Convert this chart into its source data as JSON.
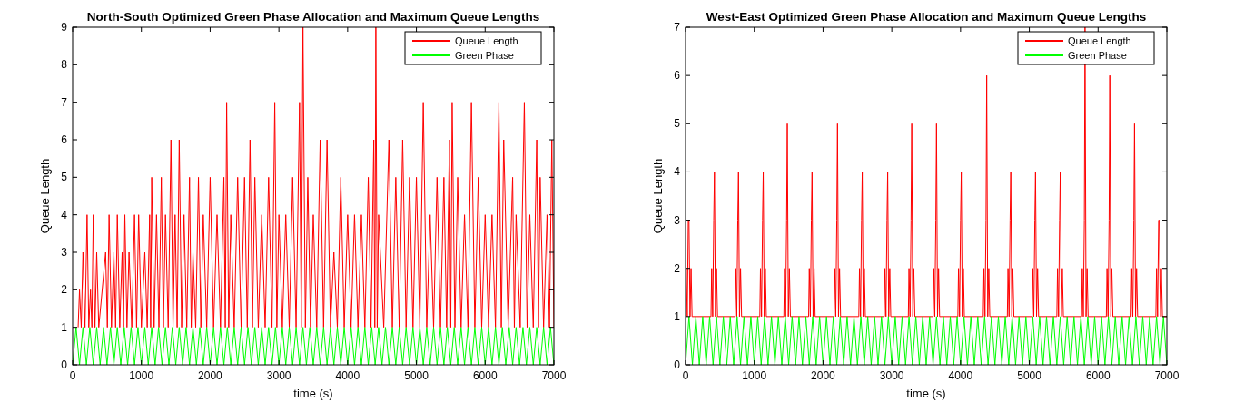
{
  "chart_data": [
    {
      "type": "line",
      "title": "North-South Optimized Green Phase Allocation and Maximum Queue Lengths",
      "xlabel": "time (s)",
      "ylabel": "Queue Length",
      "xlim": [
        0,
        7000
      ],
      "xticks": [
        0,
        1000,
        2000,
        3000,
        4000,
        5000,
        6000,
        7000
      ],
      "ylim": [
        0,
        9
      ],
      "yticks": [
        0,
        1,
        2,
        3,
        4,
        5,
        6,
        7,
        8,
        9
      ],
      "legend": "top right",
      "series": [
        {
          "name": "Queue Length",
          "color": "#ff0000",
          "x": [
            80,
            100,
            125,
            150,
            180,
            210,
            235,
            260,
            280,
            300,
            325,
            350,
            380,
            480,
            505,
            530,
            565,
            600,
            625,
            650,
            685,
            720,
            740,
            760,
            790,
            820,
            860,
            900,
            930,
            960,
            1000,
            1050,
            1085,
            1120,
            1135,
            1150,
            1185,
            1220,
            1255,
            1290,
            1320,
            1350,
            1390,
            1430,
            1460,
            1490,
            1520,
            1550,
            1585,
            1620,
            1660,
            1700,
            1725,
            1750,
            1790,
            1830,
            1865,
            1900,
            1950,
            2000,
            2050,
            2100,
            2150,
            2200,
            2220,
            2240,
            2270,
            2300,
            2350,
            2400,
            2450,
            2500,
            2540,
            2580,
            2615,
            2650,
            2700,
            2750,
            2800,
            2850,
            2900,
            2940,
            2970,
            3000,
            3050,
            3100,
            3150,
            3200,
            3250,
            3300,
            3325,
            3350,
            3385,
            3420,
            3460,
            3500,
            3550,
            3600,
            3650,
            3700,
            3750,
            3800,
            3850,
            3900,
            3950,
            4000,
            4050,
            4100,
            4150,
            4200,
            4250,
            4300,
            4340,
            4380,
            4395,
            4410,
            4430,
            4450,
            4525,
            4600,
            4650,
            4700,
            4750,
            4800,
            4850,
            4900,
            4950,
            5000,
            5050,
            5100,
            5150,
            5200,
            5250,
            5300,
            5350,
            5400,
            5440,
            5480,
            5500,
            5520,
            5560,
            5600,
            5650,
            5700,
            5750,
            5800,
            5850,
            5900,
            5950,
            6000,
            6050,
            6100,
            6150,
            6200,
            6235,
            6270,
            6335,
            6400,
            6425,
            6450,
            6510,
            6570,
            6610,
            6650,
            6700,
            6750,
            6775,
            6800,
            6850,
            6900,
            6935,
            6970,
            7000
          ],
          "values": [
            1,
            2,
            1,
            3,
            1,
            4,
            1,
            2,
            1,
            4,
            1,
            3,
            1,
            3,
            1,
            4,
            1,
            3,
            1,
            4,
            1,
            3,
            1,
            4,
            1,
            3,
            1,
            4,
            1,
            4,
            1,
            3,
            1,
            4,
            1,
            5,
            1,
            4,
            1,
            5,
            1,
            4,
            1,
            6,
            1,
            4,
            1,
            6,
            1,
            4,
            1,
            5,
            1,
            3,
            1,
            5,
            1,
            4,
            1,
            5,
            1,
            4,
            1,
            5,
            1,
            7,
            1,
            4,
            1,
            5,
            1,
            5,
            1,
            6,
            1,
            5,
            1,
            4,
            1,
            5,
            1,
            7,
            1,
            4,
            1,
            4,
            1,
            5,
            1,
            7,
            1,
            9,
            1,
            5,
            1,
            4,
            1,
            6,
            1,
            6,
            1,
            3,
            1,
            5,
            1,
            4,
            1,
            4,
            1,
            4,
            1,
            5,
            1,
            6,
            1,
            9,
            1,
            4,
            1,
            6,
            1,
            5,
            1,
            6,
            1,
            5,
            1,
            5,
            1,
            7,
            1,
            4,
            1,
            5,
            1,
            5,
            1,
            6,
            1,
            7,
            1,
            5,
            1,
            4,
            1,
            7,
            1,
            5,
            1,
            4,
            1,
            4,
            1,
            7,
            1,
            6,
            1,
            5,
            1,
            4,
            1,
            7,
            1,
            4,
            1,
            6,
            1,
            5,
            1,
            4,
            1,
            6,
            1
          ]
        },
        {
          "name": "Green Phase",
          "color": "#00ff00",
          "x": [
            0,
            50,
            100,
            150,
            200,
            250,
            300,
            350,
            400,
            450,
            500,
            550,
            600,
            650,
            700,
            750,
            800,
            850,
            900,
            950,
            1000,
            1050,
            1100,
            1150,
            1200,
            1250,
            1300,
            1350,
            1400,
            1450,
            1500,
            1550,
            1600,
            1650,
            1700,
            1750,
            1800,
            1850,
            1900,
            1950,
            2000,
            2050,
            2100,
            2150,
            2200,
            2250,
            2300,
            2350,
            2400,
            2450,
            2500,
            2550,
            2600,
            2650,
            2700,
            2750,
            2800,
            2850,
            2900,
            2950,
            3000,
            3050,
            3100,
            3150,
            3200,
            3250,
            3300,
            3350,
            3400,
            3450,
            3500,
            3550,
            3600,
            3650,
            3700,
            3750,
            3800,
            3850,
            3900,
            3950,
            4000,
            4050,
            4100,
            4150,
            4200,
            4250,
            4300,
            4350,
            4400,
            4450,
            4500,
            4550,
            4600,
            4650,
            4700,
            4750,
            4800,
            4850,
            4900,
            4950,
            5000,
            5050,
            5100,
            5150,
            5200,
            5250,
            5300,
            5350,
            5400,
            5450,
            5500,
            5550,
            5600,
            5650,
            5700,
            5750,
            5800,
            5850,
            5900,
            5950,
            6000,
            6050,
            6100,
            6150,
            6200,
            6250,
            6300,
            6350,
            6400,
            6450,
            6500,
            6550,
            6600,
            6650,
            6700,
            6750,
            6800,
            6850,
            6900,
            6950,
            7000
          ],
          "values": [
            0,
            1,
            0,
            1,
            0,
            1,
            0,
            1,
            0,
            1,
            0,
            1,
            0,
            1,
            0,
            1,
            0,
            1,
            0,
            1,
            0,
            1,
            0,
            1,
            0,
            1,
            0,
            1,
            0,
            1,
            0,
            1,
            0,
            1,
            0,
            1,
            0,
            1,
            0,
            1,
            0,
            1,
            0,
            1,
            0,
            1,
            0,
            1,
            0,
            1,
            0,
            1,
            0,
            1,
            0,
            1,
            0,
            1,
            0,
            1,
            0,
            1,
            0,
            1,
            0,
            1,
            0,
            1,
            0,
            1,
            0,
            1,
            0,
            1,
            0,
            1,
            0,
            1,
            0,
            1,
            0,
            1,
            0,
            1,
            0,
            1,
            0,
            1,
            0,
            1,
            0,
            1,
            0,
            1,
            0,
            1,
            0,
            1,
            0,
            1,
            0,
            1,
            0,
            1,
            0,
            1,
            0,
            1,
            0,
            1,
            0,
            1,
            0,
            1,
            0,
            1,
            0,
            1,
            0,
            1,
            0,
            1,
            0,
            1,
            0,
            1,
            0,
            1,
            0,
            1,
            0,
            1,
            0,
            1,
            0,
            1,
            0,
            1,
            0,
            1,
            0
          ]
        }
      ]
    },
    {
      "type": "line",
      "title": "West-East Optimized Green Phase Allocation and Maximum Queue Lengths",
      "xlabel": "time (s)",
      "ylabel": "Queue Length",
      "xlim": [
        0,
        7000
      ],
      "xticks": [
        0,
        1000,
        2000,
        3000,
        4000,
        5000,
        6000,
        7000
      ],
      "ylim": [
        0,
        7
      ],
      "yticks": [
        0,
        1,
        2,
        3,
        4,
        5,
        6,
        7
      ],
      "legend": "top right",
      "series": [
        {
          "name": "Queue Length",
          "color": "#ff0000",
          "x": [
            0,
            10,
            25,
            40,
            50,
            65,
            80,
            95,
            370,
            380,
            395,
            410,
            420,
            435,
            450,
            465,
            720,
            730,
            745,
            760,
            770,
            785,
            800,
            815,
            1080,
            1090,
            1105,
            1120,
            1130,
            1145,
            1160,
            1175,
            1430,
            1440,
            1455,
            1470,
            1480,
            1495,
            1510,
            1525,
            1790,
            1800,
            1815,
            1830,
            1840,
            1855,
            1870,
            1885,
            2160,
            2170,
            2185,
            2200,
            2210,
            2225,
            2240,
            2255,
            2520,
            2530,
            2545,
            2560,
            2570,
            2585,
            2600,
            2615,
            2890,
            2900,
            2915,
            2930,
            2940,
            2955,
            2970,
            2985,
            3240,
            3250,
            3265,
            3280,
            3290,
            3305,
            3320,
            3335,
            3600,
            3610,
            3625,
            3640,
            3650,
            3665,
            3680,
            3695,
            3960,
            3970,
            3985,
            4000,
            4010,
            4025,
            4040,
            4055,
            4330,
            4340,
            4355,
            4370,
            4380,
            4395,
            4410,
            4425,
            4680,
            4690,
            4705,
            4720,
            4730,
            4745,
            4760,
            4775,
            5040,
            5050,
            5065,
            5080,
            5090,
            5105,
            5120,
            5135,
            5400,
            5410,
            5425,
            5440,
            5450,
            5465,
            5480,
            5495,
            5760,
            5770,
            5785,
            5800,
            5810,
            5825,
            5840,
            5855,
            6120,
            6130,
            6145,
            6160,
            6170,
            6185,
            6200,
            6215,
            6480,
            6490,
            6505,
            6520,
            6530,
            6545,
            6560,
            6575,
            6840,
            6850,
            6865,
            6880,
            6890,
            6905,
            6920,
            6935,
            7000
          ],
          "values": [
            1,
            2,
            1,
            3,
            3,
            1,
            2,
            1,
            1,
            2,
            1,
            3,
            4,
            1,
            2,
            1,
            1,
            2,
            1,
            3,
            4,
            1,
            2,
            1,
            1,
            2,
            1,
            3,
            4,
            1,
            2,
            1,
            1,
            2,
            1,
            3,
            5,
            1,
            2,
            1,
            1,
            2,
            1,
            3,
            4,
            1,
            2,
            1,
            1,
            2,
            1,
            3,
            5,
            1,
            2,
            1,
            1,
            2,
            1,
            3,
            4,
            1,
            2,
            1,
            1,
            2,
            1,
            3,
            4,
            1,
            2,
            1,
            1,
            2,
            1,
            3,
            5,
            1,
            2,
            1,
            1,
            2,
            1,
            3,
            5,
            1,
            2,
            1,
            1,
            2,
            1,
            3,
            4,
            1,
            2,
            1,
            1,
            2,
            1,
            3,
            6,
            1,
            2,
            1,
            1,
            2,
            1,
            3,
            4,
            1,
            2,
            1,
            1,
            2,
            1,
            3,
            4,
            1,
            2,
            1,
            1,
            2,
            1,
            3,
            4,
            1,
            2,
            1,
            1,
            2,
            1,
            3,
            7,
            1,
            2,
            1,
            1,
            2,
            1,
            3,
            6,
            1,
            2,
            1,
            1,
            2,
            1,
            3,
            5,
            1,
            2,
            1,
            1,
            2,
            1,
            3,
            3,
            1,
            2,
            1,
            1
          ]
        },
        {
          "name": "Green Phase",
          "color": "#00ff00",
          "x": [
            0,
            50,
            100,
            150,
            200,
            250,
            300,
            350,
            400,
            450,
            500,
            550,
            600,
            650,
            700,
            750,
            800,
            850,
            900,
            950,
            1000,
            1050,
            1100,
            1150,
            1200,
            1250,
            1300,
            1350,
            1400,
            1450,
            1500,
            1550,
            1600,
            1650,
            1700,
            1750,
            1800,
            1850,
            1900,
            1950,
            2000,
            2050,
            2100,
            2150,
            2200,
            2250,
            2300,
            2350,
            2400,
            2450,
            2500,
            2550,
            2600,
            2650,
            2700,
            2750,
            2800,
            2850,
            2900,
            2950,
            3000,
            3050,
            3100,
            3150,
            3200,
            3250,
            3300,
            3350,
            3400,
            3450,
            3500,
            3550,
            3600,
            3650,
            3700,
            3750,
            3800,
            3850,
            3900,
            3950,
            4000,
            4050,
            4100,
            4150,
            4200,
            4250,
            4300,
            4350,
            4400,
            4450,
            4500,
            4550,
            4600,
            4650,
            4700,
            4750,
            4800,
            4850,
            4900,
            4950,
            5000,
            5050,
            5100,
            5150,
            5200,
            5250,
            5300,
            5350,
            5400,
            5450,
            5500,
            5550,
            5600,
            5650,
            5700,
            5750,
            5800,
            5850,
            5900,
            5950,
            6000,
            6050,
            6100,
            6150,
            6200,
            6250,
            6300,
            6350,
            6400,
            6450,
            6500,
            6550,
            6600,
            6650,
            6700,
            6750,
            6800,
            6850,
            6900,
            6950,
            7000
          ],
          "values": [
            0,
            1,
            0,
            1,
            0,
            1,
            0,
            1,
            0,
            1,
            0,
            1,
            0,
            1,
            0,
            1,
            0,
            1,
            0,
            1,
            0,
            1,
            0,
            1,
            0,
            1,
            0,
            1,
            0,
            1,
            0,
            1,
            0,
            1,
            0,
            1,
            0,
            1,
            0,
            1,
            0,
            1,
            0,
            1,
            0,
            1,
            0,
            1,
            0,
            1,
            0,
            1,
            0,
            1,
            0,
            1,
            0,
            1,
            0,
            1,
            0,
            1,
            0,
            1,
            0,
            1,
            0,
            1,
            0,
            1,
            0,
            1,
            0,
            1,
            0,
            1,
            0,
            1,
            0,
            1,
            0,
            1,
            0,
            1,
            0,
            1,
            0,
            1,
            0,
            1,
            0,
            1,
            0,
            1,
            0,
            1,
            0,
            1,
            0,
            1,
            0,
            1,
            0,
            1,
            0,
            1,
            0,
            1,
            0,
            1,
            0,
            1,
            0,
            1,
            0,
            1,
            0,
            1,
            0,
            1,
            0,
            1,
            0,
            1,
            0,
            1,
            0,
            1,
            0,
            1,
            0,
            1,
            0,
            1,
            0,
            1,
            0,
            1,
            0,
            1,
            0
          ]
        }
      ]
    }
  ]
}
